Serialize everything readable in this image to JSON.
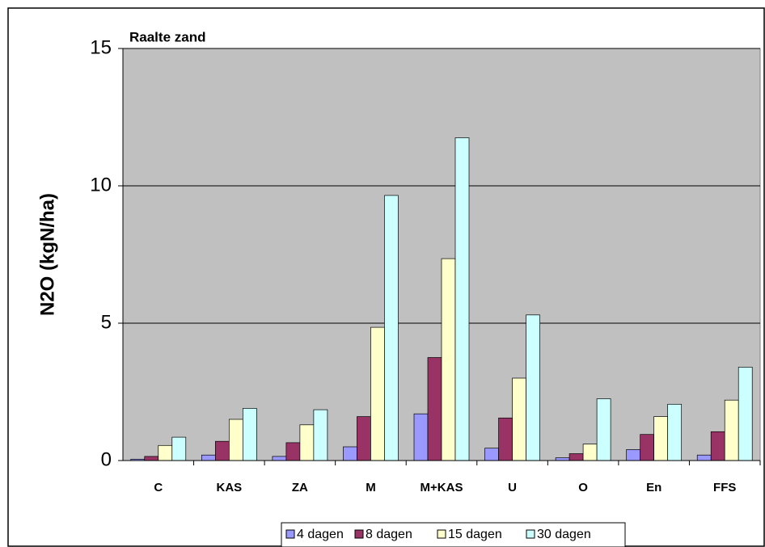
{
  "chart_data": {
    "type": "bar",
    "title": "Raalte zand",
    "y_label": "N2O (kgN/ha)",
    "categories": [
      "C",
      "KAS",
      "ZA",
      "M",
      "M+KAS",
      "U",
      "O",
      "En",
      "FFS"
    ],
    "series": [
      {
        "name": "4 dagen",
        "color": "#9999ff",
        "values": [
          0.05,
          0.2,
          0.15,
          0.5,
          1.7,
          0.45,
          0.1,
          0.4,
          0.2
        ]
      },
      {
        "name": "8 dagen",
        "color": "#993366",
        "values": [
          0.15,
          0.7,
          0.65,
          1.6,
          3.75,
          1.55,
          0.25,
          0.95,
          1.05
        ]
      },
      {
        "name": "15 dagen",
        "color": "#ffffcc",
        "values": [
          0.55,
          1.5,
          1.3,
          4.85,
          7.35,
          3.0,
          0.6,
          1.6,
          2.2
        ]
      },
      {
        "name": "30 dagen",
        "color": "#ccffff",
        "values": [
          0.85,
          1.9,
          1.85,
          9.65,
          11.75,
          5.3,
          2.25,
          2.05,
          3.4
        ]
      }
    ],
    "ylim": [
      0,
      15
    ],
    "yticks": [
      0,
      5,
      10,
      15
    ],
    "grid": true,
    "legend": "bottom"
  }
}
